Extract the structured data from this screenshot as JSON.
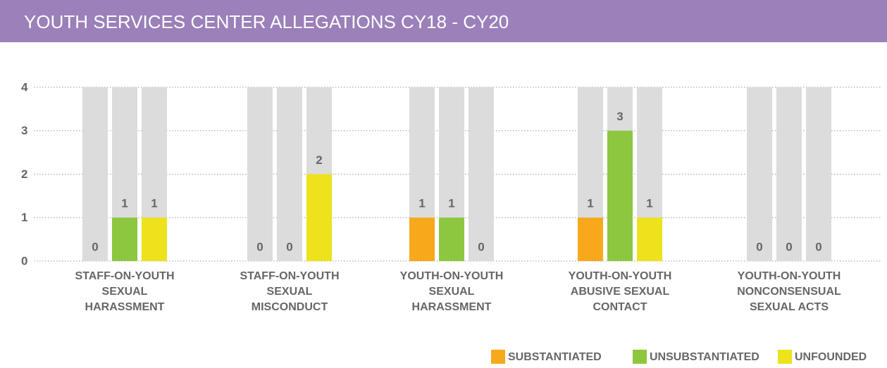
{
  "chart_data": {
    "type": "bar",
    "title": "YOUTH SERVICES CENTER ALLEGATIONS CY18 - CY20",
    "categories": [
      [
        "STAFF-ON-YOUTH",
        "SEXUAL",
        "HARASSMENT"
      ],
      [
        "STAFF-ON-YOUTH",
        "SEXUAL",
        "MISCONDUCT"
      ],
      [
        "YOUTH-ON-YOUTH",
        "SEXUAL",
        "HARASSMENT"
      ],
      [
        "YOUTH-ON-YOUTH",
        "ABUSIVE SEXUAL",
        "CONTACT"
      ],
      [
        "YOUTH-ON-YOUTH",
        "NONCONSENSUAL",
        "SEXUAL ACTS"
      ]
    ],
    "series": [
      {
        "name": "SUBSTANTIATED",
        "color": "#f7a81b",
        "values": [
          0,
          0,
          1,
          1,
          0
        ]
      },
      {
        "name": "UNSUBSTANTIATED",
        "color": "#8dc63f",
        "values": [
          1,
          0,
          1,
          3,
          0
        ]
      },
      {
        "name": "UNFOUNDED",
        "color": "#ede21b",
        "values": [
          1,
          2,
          0,
          1,
          0
        ]
      }
    ],
    "ylim": [
      0,
      4
    ],
    "yticks": [
      0,
      1,
      2,
      3,
      4
    ],
    "grid": true,
    "legend": "bottom-right"
  }
}
